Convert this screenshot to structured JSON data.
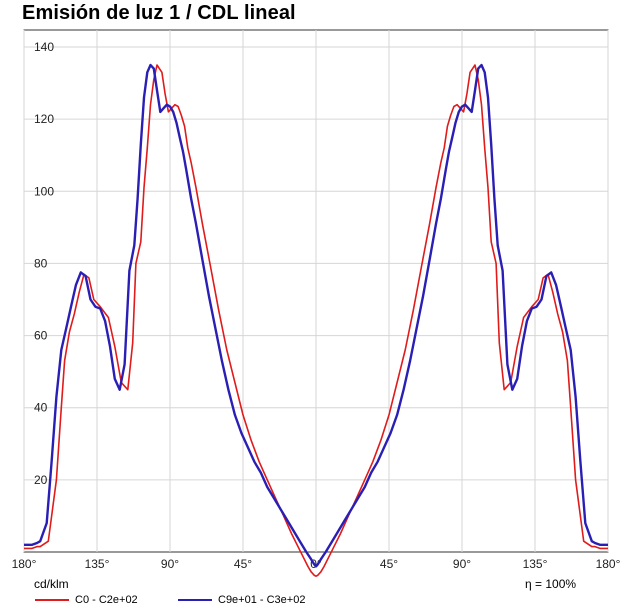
{
  "title": "Emisión de luz 1 / CDL lineal",
  "unit_label": "cd/klm",
  "efficiency_label": "η = 100%",
  "chart_data": {
    "type": "line",
    "title": "Emisión de luz 1 / CDL lineal",
    "ylabel": "cd/klm",
    "ylim": [
      0,
      140
    ],
    "yticks": [
      20,
      40,
      60,
      80,
      100,
      120,
      140
    ],
    "xlim": [
      -180,
      180
    ],
    "xticks": [
      -180,
      -135,
      -90,
      -45,
      0,
      45,
      90,
      135,
      180
    ],
    "xtick_labels": [
      "180°",
      "135°",
      "90°",
      "45°",
      "0°",
      "45°",
      "90°",
      "135°",
      "180°"
    ],
    "grid": true,
    "legend_position": "bottom",
    "series": [
      {
        "name": "C0 - C2e+02",
        "color": "#e01b1b",
        "x": [
          -180,
          -175,
          -172,
          -170,
          -165,
          -160,
          -157,
          -155,
          -152,
          -149,
          -146,
          -143,
          -140,
          -137,
          -133,
          -128,
          -124,
          -120,
          -116,
          -113,
          -111,
          -108,
          -106,
          -104,
          -102,
          -100,
          -98,
          -95,
          -93,
          -91,
          -89,
          -87,
          -85,
          -83,
          -81,
          -79,
          -77,
          -74,
          -70,
          -65,
          -60,
          -55,
          -50,
          -45,
          -40,
          -35,
          -30,
          -25,
          -20,
          -15,
          -10,
          -5,
          -3,
          -1,
          0,
          1,
          3,
          5,
          10,
          15,
          20,
          25,
          30,
          35,
          40,
          45,
          50,
          55,
          60,
          65,
          70,
          74,
          77,
          79,
          81,
          83,
          85,
          87,
          89,
          91,
          93,
          95,
          98,
          100,
          102,
          104,
          106,
          108,
          111,
          113,
          116,
          120,
          124,
          128,
          133,
          137,
          140,
          143,
          146,
          149,
          152,
          155,
          157,
          160,
          165,
          170,
          172,
          175,
          180
        ],
        "values": [
          1,
          1,
          1.5,
          1.5,
          3,
          20,
          40,
          53,
          61,
          66,
          72,
          77,
          76,
          70,
          68,
          65,
          57,
          47,
          45,
          58,
          80,
          86,
          101,
          112,
          124,
          131,
          135,
          133,
          127,
          122,
          123,
          124,
          123.5,
          121,
          118,
          112,
          108,
          101,
          91,
          79,
          67,
          56,
          47,
          38,
          31,
          25,
          20,
          15,
          10,
          5,
          0.5,
          -4,
          -5.5,
          -6.5,
          -6.7,
          -6.5,
          -5.5,
          -4,
          0.5,
          5,
          10,
          15,
          20,
          25,
          31,
          38,
          47,
          56,
          67,
          79,
          91,
          101,
          108,
          112,
          118,
          121,
          123.5,
          124,
          123,
          122,
          127,
          133,
          135,
          131,
          124,
          112,
          101,
          86,
          80,
          58,
          45,
          47,
          57,
          65,
          68,
          70,
          76,
          77,
          72,
          66,
          61,
          53,
          40,
          20,
          3,
          1.5,
          1.5,
          1,
          1
        ]
      },
      {
        "name": "C9e+01 - C3e+02",
        "color": "#2a1fb4",
        "x": [
          -180,
          -175,
          -172,
          -170,
          -166,
          -163,
          -160,
          -157,
          -154,
          -151,
          -148,
          -145,
          -142,
          -139,
          -136,
          -133,
          -130,
          -127,
          -124,
          -121,
          -118,
          -115,
          -112,
          -110,
          -108,
          -106,
          -104,
          -102,
          -100,
          -98,
          -96,
          -94,
          -92,
          -90,
          -88,
          -86,
          -84,
          -82,
          -80,
          -77,
          -74,
          -70,
          -66,
          -62,
          -58,
          -54,
          -50,
          -46,
          -42,
          -38,
          -34,
          -30,
          -26,
          -22,
          -18,
          -14,
          -10,
          -6,
          -3,
          -1,
          0,
          1,
          3,
          6,
          10,
          14,
          18,
          22,
          26,
          30,
          34,
          38,
          42,
          46,
          50,
          54,
          58,
          62,
          66,
          70,
          74,
          77,
          80,
          82,
          84,
          86,
          88,
          90,
          92,
          94,
          96,
          98,
          100,
          102,
          104,
          106,
          108,
          110,
          112,
          115,
          118,
          121,
          124,
          127,
          130,
          133,
          136,
          139,
          142,
          145,
          148,
          151,
          154,
          157,
          160,
          163,
          166,
          170,
          172,
          175,
          180
        ],
        "values": [
          2,
          2,
          2.5,
          3,
          8,
          25,
          43,
          56,
          62,
          68,
          74,
          77.5,
          76.5,
          70,
          68,
          67.5,
          64,
          57,
          48,
          45,
          52,
          78,
          85,
          98,
          113,
          126,
          133,
          135,
          134,
          128,
          122,
          123,
          124,
          123.5,
          122,
          119,
          115,
          111,
          106,
          98,
          91,
          81,
          71,
          62,
          53,
          45,
          38,
          33,
          29,
          25,
          22,
          18,
          15,
          12,
          9,
          6,
          3,
          0,
          -2,
          -3.5,
          -4,
          -3.5,
          -2,
          0,
          3,
          6,
          9,
          12,
          15,
          18,
          22,
          25,
          29,
          33,
          38,
          45,
          53,
          62,
          71,
          81,
          91,
          98,
          106,
          111,
          115,
          119,
          122,
          123.5,
          124,
          123,
          122,
          128,
          134,
          135,
          133,
          126,
          113,
          98,
          85,
          78,
          52,
          45,
          48,
          57,
          64,
          67.5,
          68,
          70,
          76.5,
          77.5,
          74,
          68,
          62,
          56,
          43,
          25,
          8,
          3,
          2.5,
          2,
          2
        ]
      }
    ]
  }
}
